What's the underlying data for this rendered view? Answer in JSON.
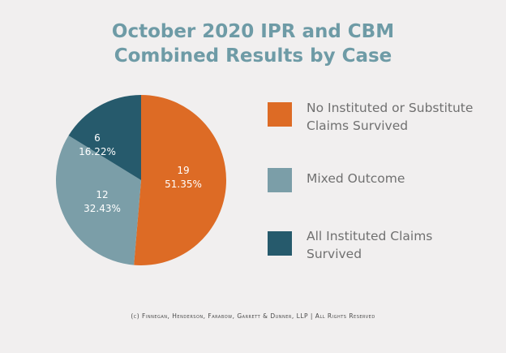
{
  "chart_data": {
    "type": "pie",
    "title_lines": [
      "October 2020 IPR and CBM",
      "Combined Results by Case"
    ],
    "slices": [
      {
        "name": "No Instituted or Substitute Claims Survived",
        "count": "19",
        "percent_label": "51.35%",
        "value": 51.35,
        "color": "#dd6b25"
      },
      {
        "name": "Mixed Outcome",
        "count": "12",
        "percent_label": "32.43%",
        "value": 32.43,
        "color": "#7b9ea8"
      },
      {
        "name": "All Instituted Claims Survived",
        "count": "6",
        "percent_label": "16.22%",
        "value": 16.22,
        "color": "#265a6c"
      }
    ],
    "legend_placement": "right"
  },
  "legend": [
    {
      "lines": [
        "No Instituted or Substitute",
        "Claims Survived"
      ],
      "color": "#dd6b25"
    },
    {
      "lines": [
        "Mixed Outcome"
      ],
      "color": "#7b9ea8"
    },
    {
      "lines": [
        "All Instituted Claims",
        "Survived"
      ],
      "color": "#265a6c"
    }
  ],
  "footer": "(c) Finnegan, Henderson, Farabow, Garrett & Dunner, LLP | All Rights Reserved"
}
